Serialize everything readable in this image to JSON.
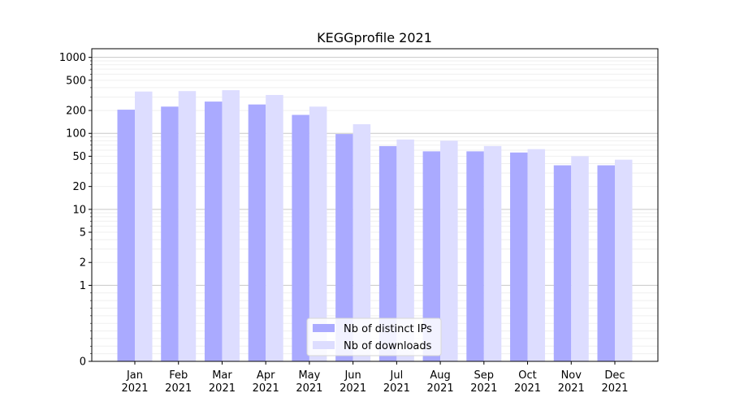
{
  "chart_data": {
    "type": "bar",
    "title": "KEGGprofile 2021",
    "y_scale": "symlog",
    "ylim": [
      0,
      1300
    ],
    "y_ticks": [
      {
        "value": 0,
        "label": "0"
      },
      {
        "value": 1,
        "label": "1"
      },
      {
        "value": 2,
        "label": "2"
      },
      {
        "value": 5,
        "label": "5"
      },
      {
        "value": 10,
        "label": "10"
      },
      {
        "value": 20,
        "label": "20"
      },
      {
        "value": 50,
        "label": "50"
      },
      {
        "value": 100,
        "label": "100"
      },
      {
        "value": 200,
        "label": "200"
      },
      {
        "value": 500,
        "label": "500"
      },
      {
        "value": 1000,
        "label": "1000"
      }
    ],
    "categories": [
      [
        "Jan",
        "2021"
      ],
      [
        "Feb",
        "2021"
      ],
      [
        "Mar",
        "2021"
      ],
      [
        "Apr",
        "2021"
      ],
      [
        "May",
        "2021"
      ],
      [
        "Jun",
        "2021"
      ],
      [
        "Jul",
        "2021"
      ],
      [
        "Aug",
        "2021"
      ],
      [
        "Sep",
        "2021"
      ],
      [
        "Oct",
        "2021"
      ],
      [
        "Nov",
        "2021"
      ],
      [
        "Dec",
        "2021"
      ]
    ],
    "series": [
      {
        "name": "Nb of distinct IPs",
        "color": "#aaaaff",
        "values": [
          205,
          225,
          262,
          240,
          175,
          98,
          68,
          58,
          58,
          56,
          38,
          38
        ]
      },
      {
        "name": "Nb of downloads",
        "color": "#ddddff",
        "values": [
          355,
          360,
          370,
          320,
          225,
          132,
          83,
          80,
          68,
          62,
          50,
          45
        ]
      }
    ],
    "legend_position": "bottom-center",
    "grid": "horizontal (major and minor)"
  }
}
